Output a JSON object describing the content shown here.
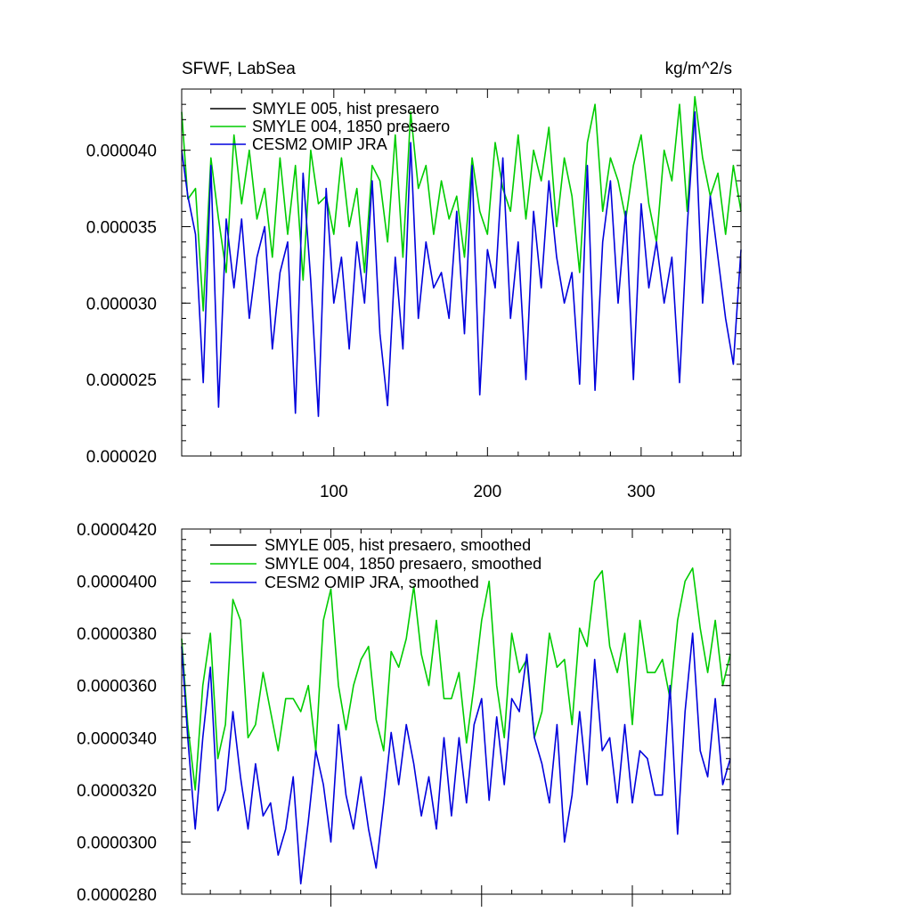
{
  "chart_data": [
    {
      "type": "line",
      "title": "SFWF, LabSea",
      "units": "kg/m^2/s",
      "xlabel": "",
      "ylabel": "",
      "xlim": [
        1,
        365
      ],
      "ylim": [
        2e-05,
        4.4e-05
      ],
      "x_ticks": [
        100,
        200,
        300
      ],
      "x_tick_labels": [
        "100",
        "200",
        "300"
      ],
      "y_ticks": [
        2e-05,
        2.5e-05,
        3e-05,
        3.5e-05,
        4e-05
      ],
      "y_tick_labels": [
        "0.000020",
        "0.000025",
        "0.000030",
        "0.000035",
        "0.000040"
      ],
      "grid": false,
      "legend_position": "top-left",
      "legend": [
        {
          "label": "SMYLE 005, hist presaero",
          "color": "#000000"
        },
        {
          "label": "SMYLE 004, 1850 presaero",
          "color": "#00cc00"
        },
        {
          "label": "CESM2 OMIP JRA",
          "color": "#0000dd"
        }
      ],
      "series": [
        {
          "color": "#000000",
          "x": [
            1,
            365
          ],
          "values": [
            null,
            null
          ]
        },
        {
          "color": "#00cc00",
          "x": [
            1,
            5,
            10,
            15,
            20,
            25,
            30,
            35,
            40,
            45,
            50,
            55,
            60,
            65,
            70,
            75,
            80,
            85,
            90,
            95,
            100,
            105,
            110,
            115,
            120,
            125,
            130,
            135,
            140,
            145,
            150,
            155,
            160,
            165,
            170,
            175,
            180,
            185,
            190,
            195,
            200,
            205,
            210,
            215,
            220,
            225,
            230,
            235,
            240,
            245,
            250,
            255,
            260,
            265,
            270,
            275,
            280,
            285,
            290,
            295,
            300,
            305,
            310,
            315,
            320,
            325,
            330,
            335,
            340,
            345,
            350,
            355,
            360,
            365
          ],
          "values": [
            4.25e-05,
            3.68e-05,
            3.75e-05,
            2.95e-05,
            3.95e-05,
            3.55e-05,
            3.2e-05,
            4.1e-05,
            3.65e-05,
            4e-05,
            3.55e-05,
            3.75e-05,
            3.3e-05,
            3.95e-05,
            3.45e-05,
            3.9e-05,
            3.15e-05,
            4e-05,
            3.65e-05,
            3.7e-05,
            3.45e-05,
            3.95e-05,
            3.5e-05,
            3.75e-05,
            3.2e-05,
            3.9e-05,
            3.8e-05,
            3.4e-05,
            4.1e-05,
            3.3e-05,
            4.25e-05,
            3.75e-05,
            3.9e-05,
            3.45e-05,
            3.8e-05,
            3.55e-05,
            3.7e-05,
            3.3e-05,
            3.95e-05,
            3.6e-05,
            3.45e-05,
            4.05e-05,
            3.75e-05,
            3.6e-05,
            4.1e-05,
            3.55e-05,
            4e-05,
            3.8e-05,
            4.15e-05,
            3.5e-05,
            3.95e-05,
            3.7e-05,
            3.2e-05,
            4.05e-05,
            4.3e-05,
            3.6e-05,
            3.95e-05,
            3.8e-05,
            3.55e-05,
            3.9e-05,
            4.1e-05,
            3.65e-05,
            3.4e-05,
            4e-05,
            3.8e-05,
            4.3e-05,
            3.6e-05,
            4.35e-05,
            3.95e-05,
            3.7e-05,
            3.85e-05,
            3.45e-05,
            3.9e-05,
            3.6e-05
          ]
        },
        {
          "color": "#0000dd",
          "x": [
            1,
            5,
            10,
            15,
            20,
            25,
            30,
            35,
            40,
            45,
            50,
            55,
            60,
            65,
            70,
            75,
            80,
            85,
            90,
            95,
            100,
            105,
            110,
            115,
            120,
            125,
            130,
            135,
            140,
            145,
            150,
            155,
            160,
            165,
            170,
            175,
            180,
            185,
            190,
            195,
            200,
            205,
            210,
            215,
            220,
            225,
            230,
            235,
            240,
            245,
            250,
            255,
            260,
            265,
            270,
            275,
            280,
            285,
            290,
            295,
            300,
            305,
            310,
            315,
            320,
            325,
            330,
            335,
            340,
            345,
            350,
            355,
            360,
            365
          ],
          "values": [
            4e-05,
            3.7e-05,
            3.45e-05,
            2.48e-05,
            3.9e-05,
            2.32e-05,
            3.55e-05,
            3.1e-05,
            3.55e-05,
            2.9e-05,
            3.3e-05,
            3.5e-05,
            2.7e-05,
            3.2e-05,
            3.4e-05,
            2.28e-05,
            3.85e-05,
            3.15e-05,
            2.26e-05,
            3.75e-05,
            3e-05,
            3.3e-05,
            2.7e-05,
            3.4e-05,
            3e-05,
            3.8e-05,
            2.8e-05,
            2.33e-05,
            3.3e-05,
            2.7e-05,
            4.05e-05,
            2.9e-05,
            3.4e-05,
            3.1e-05,
            3.2e-05,
            2.9e-05,
            3.6e-05,
            2.8e-05,
            3.9e-05,
            2.4e-05,
            3.35e-05,
            3.1e-05,
            3.95e-05,
            2.9e-05,
            3.4e-05,
            2.5e-05,
            3.6e-05,
            3.1e-05,
            3.8e-05,
            3.3e-05,
            3e-05,
            3.2e-05,
            2.47e-05,
            3.9e-05,
            2.43e-05,
            3.4e-05,
            3.8e-05,
            3e-05,
            3.6e-05,
            2.5e-05,
            3.65e-05,
            3.1e-05,
            3.4e-05,
            3e-05,
            3.3e-05,
            2.48e-05,
            3.5e-05,
            4.25e-05,
            3e-05,
            3.7e-05,
            3.3e-05,
            2.9e-05,
            2.6e-05,
            3.35e-05
          ]
        }
      ]
    },
    {
      "type": "line",
      "title": "",
      "xlabel": "",
      "ylabel": "",
      "xlim": [
        1,
        365
      ],
      "ylim": [
        2.8e-05,
        4.2e-05
      ],
      "x_ticks": [
        100,
        200,
        300
      ],
      "y_ticks": [
        2.8e-05,
        3e-05,
        3.2e-05,
        3.4e-05,
        3.6e-05,
        3.8e-05,
        4e-05,
        4.2e-05
      ],
      "y_tick_labels": [
        "0.0000280",
        "0.0000300",
        "0.0000320",
        "0.0000340",
        "0.0000360",
        "0.0000380",
        "0.0000400",
        "0.0000420"
      ],
      "grid": false,
      "legend_position": "top-left",
      "legend": [
        {
          "label": "SMYLE 005, hist presaero, smoothed",
          "color": "#000000"
        },
        {
          "label": "SMYLE 004, 1850 presaero, smoothed",
          "color": "#00cc00"
        },
        {
          "label": "CESM2 OMIP JRA, smoothed",
          "color": "#0000dd"
        }
      ],
      "series": [
        {
          "color": "#000000",
          "x": [
            1,
            365
          ],
          "values": [
            null,
            null
          ]
        },
        {
          "color": "#00cc00",
          "x": [
            1,
            5,
            10,
            15,
            20,
            25,
            30,
            35,
            40,
            45,
            50,
            55,
            60,
            65,
            70,
            75,
            80,
            85,
            90,
            95,
            100,
            105,
            110,
            115,
            120,
            125,
            130,
            135,
            140,
            145,
            150,
            155,
            160,
            165,
            170,
            175,
            180,
            185,
            190,
            195,
            200,
            205,
            210,
            215,
            220,
            225,
            230,
            235,
            240,
            245,
            250,
            255,
            260,
            265,
            270,
            275,
            280,
            285,
            290,
            295,
            300,
            305,
            310,
            315,
            320,
            325,
            330,
            335,
            340,
            345,
            350,
            355,
            360,
            365
          ],
          "values": [
            3.78e-05,
            3.45e-05,
            3.2e-05,
            3.6e-05,
            3.8e-05,
            3.32e-05,
            3.45e-05,
            3.93e-05,
            3.85e-05,
            3.4e-05,
            3.45e-05,
            3.65e-05,
            3.5e-05,
            3.35e-05,
            3.55e-05,
            3.55e-05,
            3.5e-05,
            3.6e-05,
            3.35e-05,
            3.85e-05,
            3.97e-05,
            3.6e-05,
            3.43e-05,
            3.6e-05,
            3.7e-05,
            3.75e-05,
            3.47e-05,
            3.35e-05,
            3.73e-05,
            3.67e-05,
            3.78e-05,
            3.98e-05,
            3.72e-05,
            3.6e-05,
            3.85e-05,
            3.55e-05,
            3.55e-05,
            3.65e-05,
            3.38e-05,
            3.6e-05,
            3.85e-05,
            4e-05,
            3.6e-05,
            3.4e-05,
            3.8e-05,
            3.65e-05,
            3.7e-05,
            3.4e-05,
            3.5e-05,
            3.8e-05,
            3.67e-05,
            3.7e-05,
            3.45e-05,
            3.82e-05,
            3.75e-05,
            4e-05,
            4.04e-05,
            3.75e-05,
            3.65e-05,
            3.8e-05,
            3.45e-05,
            3.85e-05,
            3.65e-05,
            3.65e-05,
            3.7e-05,
            3.55e-05,
            3.85e-05,
            4e-05,
            4.05e-05,
            3.82e-05,
            3.65e-05,
            3.85e-05,
            3.6e-05,
            3.72e-05
          ]
        },
        {
          "color": "#0000dd",
          "x": [
            1,
            5,
            10,
            15,
            20,
            25,
            30,
            35,
            40,
            45,
            50,
            55,
            60,
            65,
            70,
            75,
            80,
            85,
            90,
            95,
            100,
            105,
            110,
            115,
            120,
            125,
            130,
            135,
            140,
            145,
            150,
            155,
            160,
            165,
            170,
            175,
            180,
            185,
            190,
            195,
            200,
            205,
            210,
            215,
            220,
            225,
            230,
            235,
            240,
            245,
            250,
            255,
            260,
            265,
            270,
            275,
            280,
            285,
            290,
            295,
            300,
            305,
            310,
            315,
            320,
            325,
            330,
            335,
            340,
            345,
            350,
            355,
            360,
            365
          ],
          "values": [
            3.75e-05,
            3.4e-05,
            3.05e-05,
            3.4e-05,
            3.67e-05,
            3.12e-05,
            3.2e-05,
            3.5e-05,
            3.25e-05,
            3.05e-05,
            3.3e-05,
            3.1e-05,
            3.15e-05,
            2.95e-05,
            3.05e-05,
            3.25e-05,
            2.84e-05,
            3.08e-05,
            3.35e-05,
            3.22e-05,
            3e-05,
            3.45e-05,
            3.18e-05,
            3.05e-05,
            3.25e-05,
            3.05e-05,
            2.9e-05,
            3.15e-05,
            3.42e-05,
            3.22e-05,
            3.45e-05,
            3.3e-05,
            3.1e-05,
            3.25e-05,
            3.05e-05,
            3.4e-05,
            3.1e-05,
            3.4e-05,
            3.15e-05,
            3.45e-05,
            3.55e-05,
            3.16e-05,
            3.48e-05,
            3.22e-05,
            3.55e-05,
            3.5e-05,
            3.72e-05,
            3.4e-05,
            3.3e-05,
            3.15e-05,
            3.45e-05,
            3e-05,
            3.18e-05,
            3.5e-05,
            3.22e-05,
            3.7e-05,
            3.35e-05,
            3.4e-05,
            3.15e-05,
            3.45e-05,
            3.15e-05,
            3.35e-05,
            3.32e-05,
            3.18e-05,
            3.18e-05,
            3.6e-05,
            3.03e-05,
            3.5e-05,
            3.8e-05,
            3.35e-05,
            3.25e-05,
            3.55e-05,
            3.22e-05,
            3.32e-05
          ]
        }
      ]
    }
  ]
}
